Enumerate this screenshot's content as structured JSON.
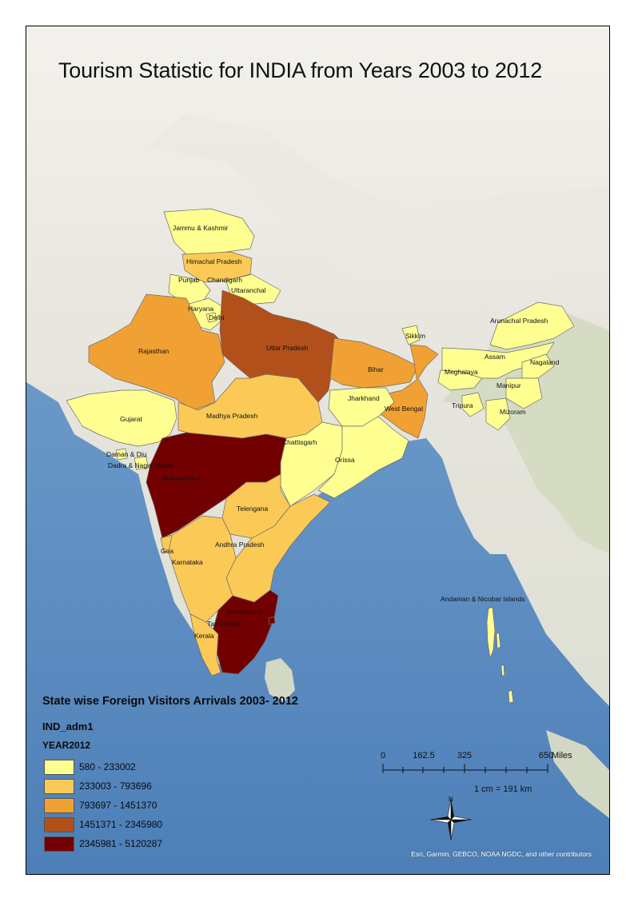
{
  "title": "Tourism Statistic for INDIA from Years 2003 to 2012",
  "legend": {
    "heading": "State wise Foreign Visitors Arrivals 2003- 2012",
    "layer": "IND_adm1",
    "field": "YEAR2012",
    "classes": [
      {
        "label": "580 - 233002",
        "color": "#ffff91"
      },
      {
        "label": "233003 - 793696",
        "color": "#fbc956"
      },
      {
        "label": "793697 - 1451370",
        "color": "#f1a133"
      },
      {
        "label": "1451371 - 2345980",
        "color": "#b1501b"
      },
      {
        "label": "2345981 - 5120287",
        "color": "#730000"
      }
    ]
  },
  "scale_bar": {
    "labels": [
      "0",
      "162.5",
      "325",
      "650"
    ],
    "unit": "Miles",
    "ratio": "1 cm = 191 km"
  },
  "north_arrow": {
    "label": "N",
    "icon": "north-arrow-icon"
  },
  "attribution": "Esri, Garmin, GEBCO, NOAA NGDC, and other contributors",
  "state_labels": {
    "jk": "Jammu & Kashmir",
    "hp": "Himachal Pradesh",
    "pb": "Punjab",
    "ch": "Chandigarh",
    "uk": "Uttaranchal",
    "hr": "Haryana",
    "dl": "Delhi",
    "rj": "Rajasthan",
    "up": "Uttar Pradesh",
    "sk": "Sikkim",
    "ar": "Arunachal Pradesh",
    "as": "Assam",
    "nl": "Nagaland",
    "ml": "Meghalaya",
    "mn": "Manipur",
    "tr": "Tripura",
    "mz": "Mizoram",
    "br": "Bihar",
    "jh": "Jharkhand",
    "wb": "West Bengal",
    "gj": "Gujarat",
    "mp": "Madhya Pradesh",
    "dd": "Daman & Diu",
    "dn": "Dadra & Nagar Haveli",
    "mh": "Maharashtra",
    "cg": "Chattisgarh",
    "od": "Orissa",
    "tg": "Telengana",
    "ga": "Goa",
    "ka": "Karnataka",
    "ap": "Andhra Pradesh",
    "py": "Pondicherry",
    "tn": "Tamil Nadu",
    "kl": "Kerala",
    "an": "Andaman & Nicobar Islands"
  }
}
